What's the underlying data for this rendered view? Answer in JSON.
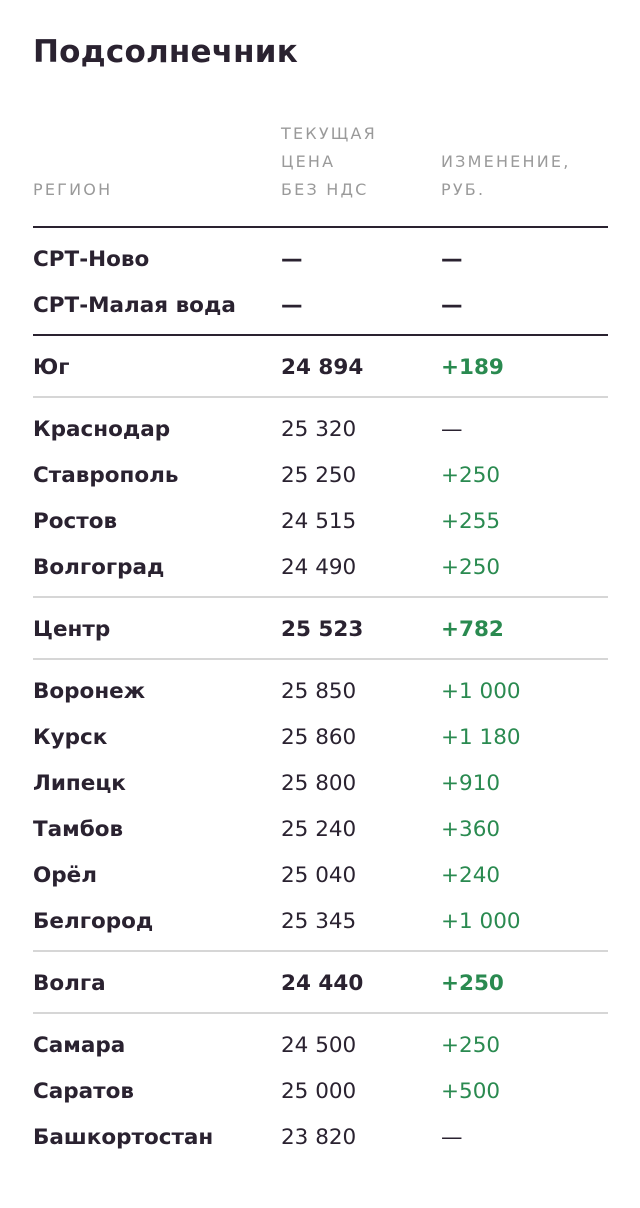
{
  "title": "Подсолнечник",
  "headers": {
    "region": "РЕГИОН",
    "price": "ТЕКУЩАЯ\nЦЕНА\nБЕЗ НДС",
    "change": "ИЗМЕНЕНИЕ,\nРУБ."
  },
  "colors": {
    "positive": "#2a8a50",
    "text": "#2a2230",
    "header": "#9a9a9a"
  },
  "rows": [
    {
      "region": "СРТ-Ново",
      "price": "—",
      "change": "—"
    },
    {
      "region": "СРТ-Малая вода",
      "price": "—",
      "change": "—"
    },
    {
      "region": "Юг",
      "price": "24 894",
      "change": "+189"
    },
    {
      "region": "Краснодар",
      "price": "25 320",
      "change": "—"
    },
    {
      "region": "Ставрополь",
      "price": "25 250",
      "change": "+250"
    },
    {
      "region": "Ростов",
      "price": "24 515",
      "change": "+255"
    },
    {
      "region": "Волгоград",
      "price": "24 490",
      "change": "+250"
    },
    {
      "region": "Центр",
      "price": "25 523",
      "change": "+782"
    },
    {
      "region": "Воронеж",
      "price": "25 850",
      "change": "+1 000"
    },
    {
      "region": "Курск",
      "price": "25 860",
      "change": "+1 180"
    },
    {
      "region": "Липецк",
      "price": "25 800",
      "change": "+910"
    },
    {
      "region": "Тамбов",
      "price": "25 240",
      "change": "+360"
    },
    {
      "region": "Орёл",
      "price": "25 040",
      "change": "+240"
    },
    {
      "region": "Белгород",
      "price": "25 345",
      "change": "+1 000"
    },
    {
      "region": "Волга",
      "price": "24 440",
      "change": "+250"
    },
    {
      "region": "Самара",
      "price": "24 500",
      "change": "+250"
    },
    {
      "region": "Саратов",
      "price": "25 000",
      "change": "+500"
    },
    {
      "region": "Башкортостан",
      "price": "23 820",
      "change": "—"
    }
  ]
}
